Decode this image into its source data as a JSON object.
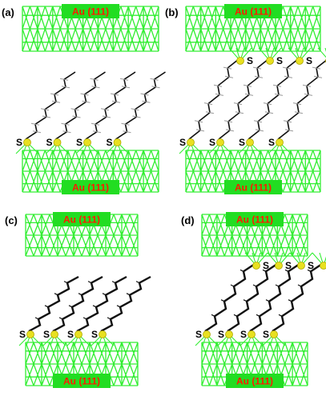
{
  "panels": [
    {
      "id": "a",
      "label": "(a)",
      "top_electrode": "Au (111)",
      "bottom_electrode": "Au (111)",
      "sulfur_label": "S",
      "chain_style": "alkyl",
      "bottom_anchored": true,
      "top_anchored": false
    },
    {
      "id": "b",
      "label": "(b)",
      "top_electrode": "Au (111)",
      "bottom_electrode": "Au (111)",
      "sulfur_label": "S",
      "chain_style": "alkyl",
      "bottom_anchored": true,
      "top_anchored": true
    },
    {
      "id": "c",
      "label": "(c)",
      "top_electrode": "Au (111)",
      "bottom_electrode": "Au (111)",
      "sulfur_label": "S",
      "chain_style": "conjugated",
      "bottom_anchored": true,
      "top_anchored": false
    },
    {
      "id": "d",
      "label": "(d)",
      "top_electrode": "Au (111)",
      "bottom_electrode": "Au (111)",
      "sulfur_label": "S",
      "chain_style": "conjugated",
      "bottom_anchored": true,
      "top_anchored": true
    }
  ],
  "colors": {
    "gold_lattice": "#33ee33",
    "label_box": "#22dd22",
    "label_text": "#ff1a00",
    "sulfur": "#e8e020",
    "chain": "#111111",
    "hydrogen": "#9a9a9a"
  }
}
